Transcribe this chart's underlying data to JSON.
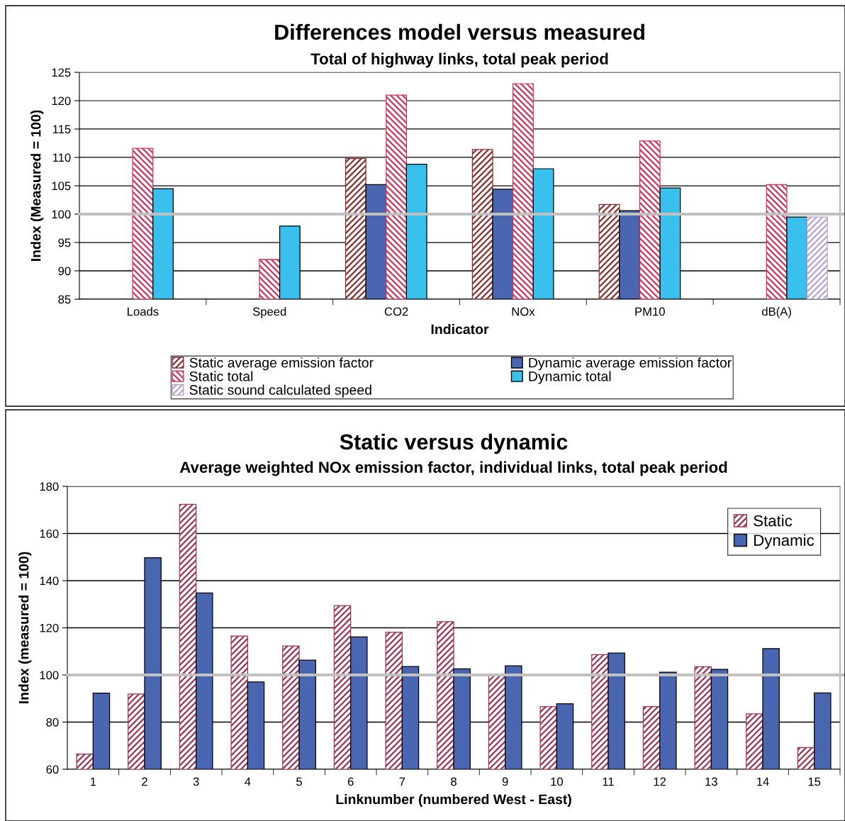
{
  "chart_data": [
    {
      "type": "bar",
      "title": "Differences model versus measured",
      "subtitle": "Total of highway links, total peak period",
      "xlabel": "Indicator",
      "ylabel": "Index (Measured = 100)",
      "categories": [
        "Loads",
        "Speed",
        "CO2",
        "NOx",
        "PM10",
        "dB(A)"
      ],
      "series": [
        {
          "name": "Static average emission factor",
          "color": "#8b2c2c",
          "values": [
            null,
            null,
            109.8,
            111.4,
            101.7,
            null
          ]
        },
        {
          "name": "Dynamic average emission factor",
          "color": "#4a66b0",
          "values": [
            null,
            null,
            105.2,
            104.4,
            100.6,
            null
          ]
        },
        {
          "name": "Static total",
          "color": "#d4305a",
          "values": [
            111.6,
            92.0,
            121.0,
            123.0,
            112.9,
            105.2
          ]
        },
        {
          "name": "Dynamic total",
          "color": "#3ac0ec",
          "values": [
            104.5,
            97.9,
            108.8,
            108.0,
            104.6,
            99.5
          ]
        },
        {
          "name": "Static sound calculated speed",
          "color": "#b8a0d0",
          "values": [
            null,
            null,
            null,
            null,
            null,
            99.5
          ]
        }
      ],
      "ylim": [
        85,
        125
      ],
      "yticks": [
        85,
        90,
        95,
        100,
        105,
        110,
        115,
        120,
        125
      ],
      "grid": "y",
      "legend": "bottom",
      "ref_lines": [
        {
          "axis": "y",
          "value": 100,
          "color": "#c0c0c0"
        }
      ]
    },
    {
      "type": "bar",
      "title": "Static versus dynamic",
      "subtitle": "Average weighted NOx emission factor, individual links, total peak period",
      "xlabel": "Linknumber (numbered West - East)",
      "ylabel": "Index (measured = 100)",
      "categories": [
        "1",
        "2",
        "3",
        "4",
        "5",
        "6",
        "7",
        "8",
        "9",
        "10",
        "11",
        "12",
        "13",
        "14",
        "15"
      ],
      "series": [
        {
          "name": "Static",
          "color": "#a03050",
          "values": [
            66.4,
            91.9,
            172.4,
            116.5,
            112.3,
            129.4,
            118.1,
            122.6,
            100.0,
            86.6,
            108.6,
            86.6,
            103.5,
            83.5,
            69.2
          ]
        },
        {
          "name": "Dynamic",
          "color": "#4a66b0",
          "values": [
            92.3,
            149.7,
            134.8,
            97.0,
            106.3,
            116.1,
            103.6,
            102.6,
            103.9,
            87.8,
            109.3,
            101.2,
            102.4,
            111.2,
            92.4
          ]
        }
      ],
      "ylim": [
        60,
        180
      ],
      "yticks": [
        60,
        80,
        100,
        120,
        140,
        160,
        180
      ],
      "grid": "y",
      "legend": "top right",
      "ref_lines": [
        {
          "axis": "y",
          "value": 100,
          "color": "#c0c0c0"
        }
      ]
    }
  ]
}
